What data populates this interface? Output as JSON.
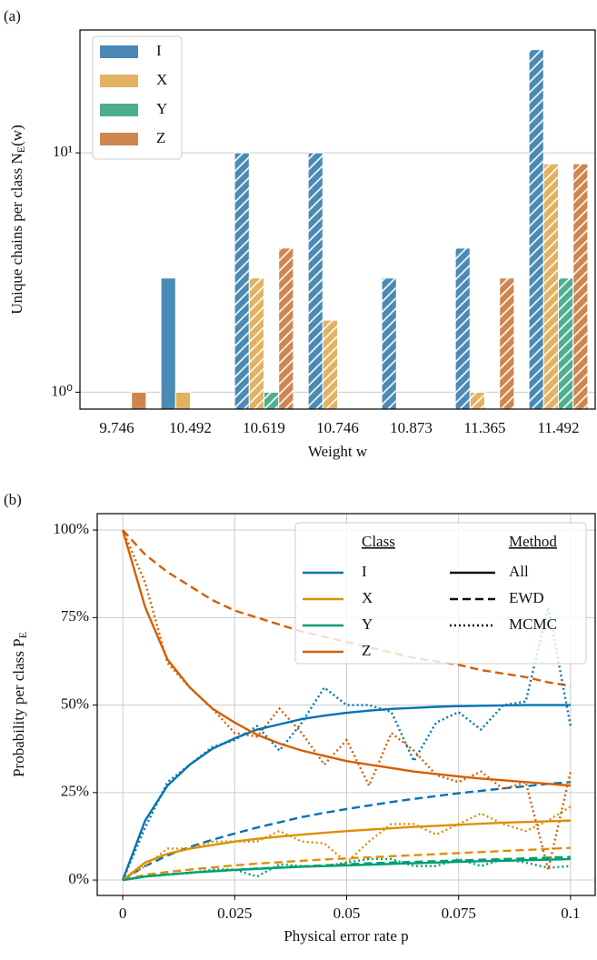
{
  "chart_data": [
    {
      "type": "bar",
      "panel_label": "(a)",
      "xlabel": "Weight w",
      "ylabel": "Unique chains per class N_E(w)",
      "categories": [
        "9.746",
        "10.492",
        "10.619",
        "10.746",
        "10.873",
        "11.365",
        "11.492"
      ],
      "series": [
        {
          "name": "I",
          "color": "#4a8ab5",
          "values": [
            null,
            3,
            10,
            10,
            3,
            4,
            27
          ]
        },
        {
          "name": "X",
          "color": "#e2b261",
          "values": [
            null,
            1,
            3,
            2,
            null,
            1,
            9
          ]
        },
        {
          "name": "Y",
          "color": "#4fae90",
          "values": [
            null,
            null,
            1,
            null,
            null,
            null,
            3
          ]
        },
        {
          "name": "Z",
          "color": "#cf8550",
          "values": [
            1,
            null,
            4,
            null,
            null,
            3,
            9
          ]
        }
      ],
      "hatched": [
        false,
        false,
        true,
        true,
        true,
        true,
        true
      ],
      "log_y": true,
      "ylim": [
        0.85,
        32.6
      ],
      "yticks": [
        {
          "value": 1,
          "label": "10⁰"
        },
        {
          "value": 10,
          "label": "10¹"
        }
      ],
      "grid": true,
      "legend_loc": "upper left"
    },
    {
      "type": "line",
      "panel_label": "(b)",
      "xlabel": "Physical error rate p",
      "ylabel": "Probability per class P_E",
      "x": [
        0,
        0.005,
        0.01,
        0.015,
        0.02,
        0.025,
        0.03,
        0.035,
        0.04,
        0.045,
        0.05,
        0.055,
        0.06,
        0.065,
        0.07,
        0.075,
        0.08,
        0.085,
        0.09,
        0.095,
        0.1
      ],
      "xlim": [
        -0.0057,
        0.1055
      ],
      "xticks": [
        0,
        0.025,
        0.05,
        0.075,
        0.1
      ],
      "ylim": [
        -4.4,
        104.7
      ],
      "yticks": [
        {
          "value": 0,
          "label": "0%"
        },
        {
          "value": 25,
          "label": "25%"
        },
        {
          "value": 50,
          "label": "50%"
        },
        {
          "value": 75,
          "label": "75%"
        },
        {
          "value": 100,
          "label": "100%"
        }
      ],
      "grid": true,
      "legend_loc": "upper right",
      "classes_title": "Class",
      "classes": [
        {
          "name": "I",
          "color": "#0173b2"
        },
        {
          "name": "X",
          "color": "#de8f05"
        },
        {
          "name": "Y",
          "color": "#029e73"
        },
        {
          "name": "Z",
          "color": "#d55e00"
        }
      ],
      "methods_title": "Method",
      "methods": [
        {
          "name": "All",
          "dash": "solid"
        },
        {
          "name": "EWD",
          "dash": "dashed"
        },
        {
          "name": "MCMC",
          "dash": "dotted"
        }
      ],
      "series": [
        {
          "class": 0,
          "method": 1,
          "values": [
            0,
            4,
            7,
            9.5,
            11.5,
            13.3,
            15,
            16.5,
            18,
            19.2,
            20.3,
            21.3,
            22.3,
            23.2,
            24,
            24.8,
            25.5,
            26.2,
            26.8,
            27.5,
            28
          ]
        },
        {
          "class": 1,
          "method": 1,
          "values": [
            0,
            1.5,
            2.3,
            3,
            3.6,
            4.2,
            4.7,
            5.1,
            5.5,
            5.9,
            6.2,
            6.5,
            6.8,
            7.1,
            7.4,
            7.7,
            8,
            8.3,
            8.6,
            8.9,
            9.2
          ]
        },
        {
          "class": 2,
          "method": 1,
          "values": [
            0,
            1,
            1.6,
            2.1,
            2.5,
            2.9,
            3.3,
            3.6,
            3.9,
            4.2,
            4.5,
            4.8,
            5,
            5.2,
            5.4,
            5.6,
            5.8,
            6,
            6.2,
            6.4,
            6.6
          ]
        },
        {
          "class": 3,
          "method": 1,
          "values": [
            100,
            93,
            88,
            84,
            80,
            77,
            75,
            73,
            71,
            69.5,
            68,
            66.5,
            65,
            63.5,
            62.5,
            61.5,
            60,
            59,
            58,
            56.5,
            55.5
          ]
        },
        {
          "class": 0,
          "method": 2,
          "values": [
            0,
            15,
            28,
            33,
            38,
            40,
            44,
            37,
            45,
            55,
            50,
            50,
            48,
            34,
            45,
            48,
            43,
            50,
            51,
            78,
            44
          ]
        },
        {
          "class": 1,
          "method": 2,
          "values": [
            0,
            4,
            9,
            9,
            11,
            11,
            11,
            14,
            11,
            10.5,
            5,
            11,
            16,
            16,
            13,
            16,
            19,
            16,
            14,
            17,
            21
          ]
        },
        {
          "class": 2,
          "method": 2,
          "values": [
            0,
            1,
            1.5,
            2,
            3,
            3,
            1,
            4.5,
            4,
            4,
            5,
            6,
            6,
            4,
            4,
            6,
            4,
            6,
            5,
            3.5,
            4
          ]
        },
        {
          "class": 3,
          "method": 2,
          "values": [
            100,
            85,
            62,
            55,
            49,
            42,
            41,
            49,
            42,
            33,
            40,
            27,
            42,
            37,
            30,
            28,
            31,
            26,
            28,
            3,
            31
          ]
        },
        {
          "class": 0,
          "method": 0,
          "values": [
            0,
            17,
            27,
            33,
            37.5,
            40.5,
            43,
            44.5,
            46,
            47,
            47.8,
            48.4,
            48.9,
            49.2,
            49.5,
            49.7,
            49.8,
            49.9,
            50,
            50,
            50
          ]
        },
        {
          "class": 1,
          "method": 0,
          "values": [
            0,
            5,
            7.5,
            9,
            10,
            11,
            11.8,
            12.4,
            13,
            13.5,
            14,
            14.4,
            14.8,
            15.2,
            15.5,
            15.8,
            16.1,
            16.4,
            16.6,
            16.8,
            17
          ]
        },
        {
          "class": 2,
          "method": 0,
          "values": [
            0,
            1,
            1.6,
            2.1,
            2.5,
            2.9,
            3.2,
            3.5,
            3.8,
            4,
            4.2,
            4.4,
            4.6,
            4.8,
            5,
            5.2,
            5.4,
            5.5,
            5.7,
            5.8,
            6
          ]
        },
        {
          "class": 3,
          "method": 0,
          "values": [
            100,
            78,
            63,
            55,
            49,
            45,
            41.5,
            39,
            37,
            35.5,
            34,
            33,
            32,
            31,
            30.3,
            29.6,
            29,
            28.5,
            28,
            27.5,
            27
          ]
        }
      ]
    }
  ]
}
